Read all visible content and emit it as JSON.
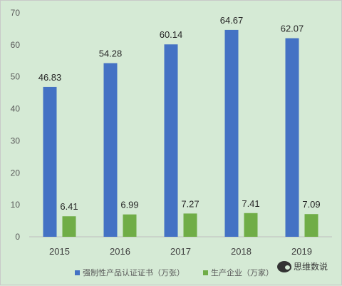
{
  "chart_data": {
    "type": "bar",
    "title": "",
    "xlabel": "",
    "ylabel": "",
    "categories": [
      "2015",
      "2016",
      "2017",
      "2018",
      "2019"
    ],
    "series": [
      {
        "name": "强制性产品认证证书（万张）",
        "values": [
          46.83,
          54.28,
          60.14,
          64.67,
          62.07
        ],
        "labels": [
          "46.83",
          "54.28",
          "60.14",
          "64.67",
          "62.07"
        ],
        "color": "#4472c4"
      },
      {
        "name": "生产企业（万家）",
        "values": [
          6.41,
          6.99,
          7.27,
          7.41,
          7.09
        ],
        "labels": [
          "6.41",
          "6.99",
          "7.27",
          "7.41",
          "7.09"
        ],
        "color": "#70ad47"
      }
    ],
    "ylim": [
      0,
      70
    ],
    "yticks": [
      "0",
      "10",
      "20",
      "30",
      "40",
      "50",
      "60",
      "70"
    ],
    "grid": false,
    "legend": "bottom"
  },
  "watermark": {
    "text": "思维数说",
    "icon": "wechat-icon"
  }
}
